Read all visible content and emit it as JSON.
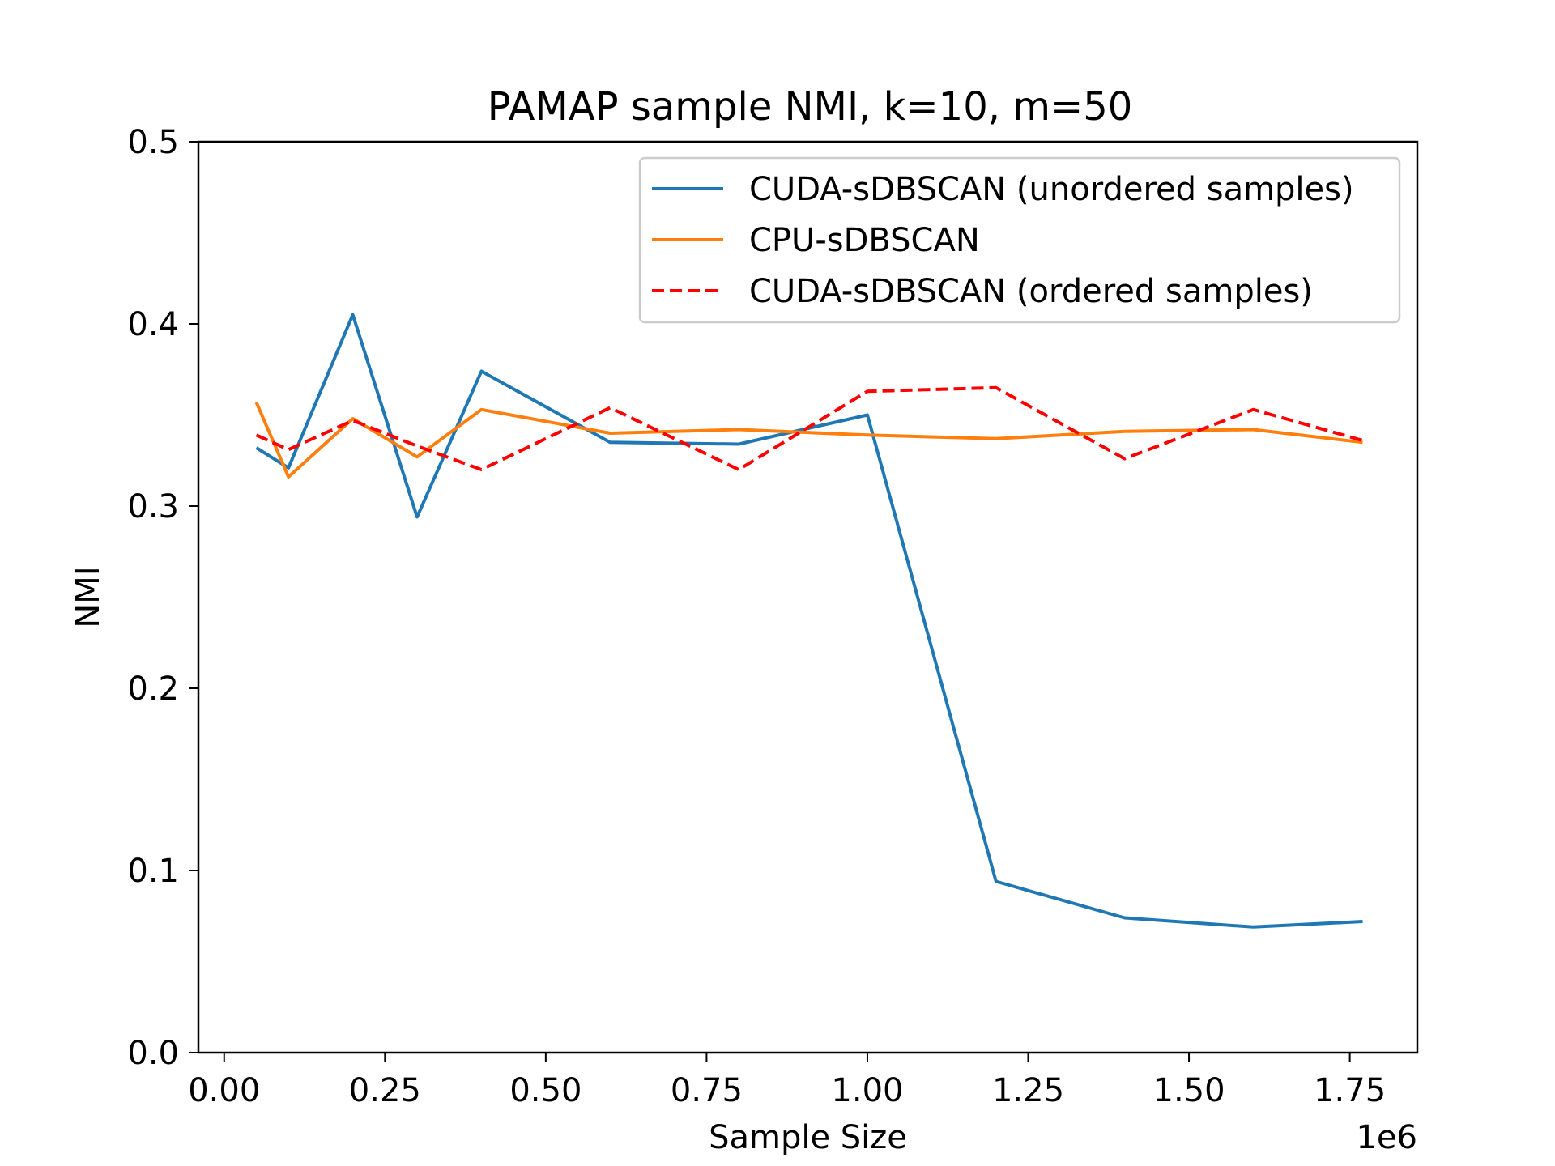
{
  "chart_data": {
    "type": "line",
    "title": "PAMAP sample NMI, k=10, m=50",
    "xlabel": "Sample Size",
    "ylabel": "NMI",
    "x_offset_label": "1e6",
    "xlim": [
      -0.04,
      1.855
    ],
    "ylim": [
      0.0,
      0.5
    ],
    "x_ticks": [
      0.0,
      0.25,
      0.5,
      0.75,
      1.0,
      1.25,
      1.5,
      1.75
    ],
    "x_tick_labels": [
      "0.00",
      "0.25",
      "0.50",
      "0.75",
      "1.00",
      "1.25",
      "1.50",
      "1.75"
    ],
    "y_ticks": [
      0.0,
      0.1,
      0.2,
      0.3,
      0.4,
      0.5
    ],
    "y_tick_labels": [
      "0.0",
      "0.1",
      "0.2",
      "0.3",
      "0.4",
      "0.5"
    ],
    "grid": false,
    "legend_position": "top-right",
    "series": [
      {
        "name": "CUDA-sDBSCAN (unordered samples)",
        "color": "#1f77b4",
        "dash": "solid",
        "x": [
          0.05,
          0.1,
          0.2,
          0.3,
          0.4,
          0.6,
          0.8,
          1.0,
          1.2,
          1.4,
          1.6,
          1.77
        ],
        "y": [
          0.332,
          0.321,
          0.405,
          0.294,
          0.374,
          0.335,
          0.334,
          0.35,
          0.094,
          0.074,
          0.069,
          0.072
        ]
      },
      {
        "name": "CPU-sDBSCAN",
        "color": "#ff7f0e",
        "dash": "solid",
        "x": [
          0.05,
          0.1,
          0.2,
          0.3,
          0.4,
          0.6,
          0.8,
          1.0,
          1.2,
          1.4,
          1.6,
          1.77
        ],
        "y": [
          0.357,
          0.316,
          0.348,
          0.327,
          0.353,
          0.34,
          0.342,
          0.339,
          0.337,
          0.341,
          0.342,
          0.335
        ]
      },
      {
        "name": "CUDA-sDBSCAN (ordered samples)",
        "color": "#ff0000",
        "dash": "dashed",
        "x": [
          0.05,
          0.1,
          0.2,
          0.3,
          0.4,
          0.6,
          0.8,
          1.0,
          1.2,
          1.4,
          1.6,
          1.77
        ],
        "y": [
          0.339,
          0.331,
          0.347,
          0.333,
          0.32,
          0.354,
          0.32,
          0.363,
          0.365,
          0.326,
          0.353,
          0.336
        ]
      }
    ]
  }
}
